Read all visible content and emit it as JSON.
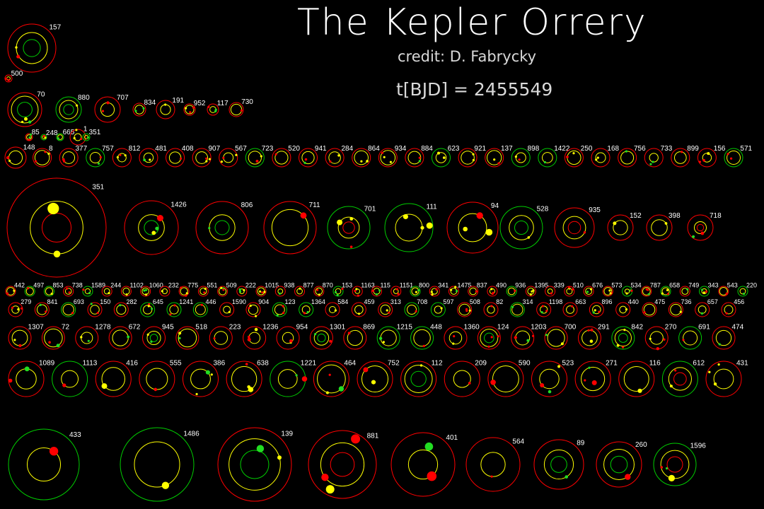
{
  "header": {
    "title": "The Kepler Orrery",
    "credit": "credit: D. Fabrycky",
    "time_label": "t[BJD] = 2455549"
  },
  "colors": {
    "background": "#000000",
    "orbit_red": "#ff0000",
    "orbit_yellow": "#ffff00",
    "orbit_green": "#00cc00",
    "planet_red": "#ff0000",
    "planet_yellow": "#ffff00",
    "planet_green": "#22dd22",
    "planet_cyan": "#22ddff",
    "label": "#ffffff"
  },
  "rows": [
    {
      "name": "row-1",
      "systems": [
        {
          "kepler_id": "157"
        }
      ]
    },
    {
      "name": "row-2",
      "systems": [
        {
          "kepler_id": "500"
        }
      ]
    },
    {
      "name": "row-3",
      "systems": [
        {
          "kepler_id": "70"
        },
        {
          "kepler_id": "880"
        },
        {
          "kepler_id": "707"
        },
        {
          "kepler_id": "834"
        },
        {
          "kepler_id": "191"
        },
        {
          "kepler_id": "952"
        },
        {
          "kepler_id": "117"
        },
        {
          "kepler_id": "730"
        }
      ]
    },
    {
      "name": "row-4",
      "systems": [
        {
          "kepler_id": "85"
        },
        {
          "kepler_id": "248"
        },
        {
          "kepler_id": "665"
        },
        {
          "kepler_id": "1"
        },
        {
          "kepler_id": "351"
        }
      ]
    },
    {
      "name": "row-5",
      "systems": [
        {
          "kepler_id": "148"
        },
        {
          "kepler_id": "8"
        },
        {
          "kepler_id": "377"
        },
        {
          "kepler_id": "757"
        },
        {
          "kepler_id": "812"
        },
        {
          "kepler_id": "481"
        },
        {
          "kepler_id": "408"
        },
        {
          "kepler_id": "907"
        },
        {
          "kepler_id": "567"
        },
        {
          "kepler_id": "723"
        },
        {
          "kepler_id": "520"
        },
        {
          "kepler_id": "941"
        },
        {
          "kepler_id": "284"
        },
        {
          "kepler_id": "864"
        },
        {
          "kepler_id": "934"
        },
        {
          "kepler_id": "884"
        },
        {
          "kepler_id": "623"
        },
        {
          "kepler_id": "921"
        },
        {
          "kepler_id": "137"
        },
        {
          "kepler_id": "898"
        },
        {
          "kepler_id": "1422"
        },
        {
          "kepler_id": "250"
        },
        {
          "kepler_id": "168"
        },
        {
          "kepler_id": "756"
        },
        {
          "kepler_id": "733"
        },
        {
          "kepler_id": "899"
        },
        {
          "kepler_id": "156"
        },
        {
          "kepler_id": "571"
        }
      ]
    },
    {
      "name": "row-6",
      "systems": [
        {
          "kepler_id": "351"
        },
        {
          "kepler_id": "1426"
        },
        {
          "kepler_id": "806"
        },
        {
          "kepler_id": "711"
        },
        {
          "kepler_id": "701"
        },
        {
          "kepler_id": "111"
        },
        {
          "kepler_id": "94"
        },
        {
          "kepler_id": "528"
        },
        {
          "kepler_id": "935"
        },
        {
          "kepler_id": "152"
        },
        {
          "kepler_id": "398"
        },
        {
          "kepler_id": "718"
        }
      ]
    },
    {
      "name": "row-7",
      "systems": [
        {
          "kepler_id": "442"
        },
        {
          "kepler_id": "497"
        },
        {
          "kepler_id": "853"
        },
        {
          "kepler_id": "738"
        },
        {
          "kepler_id": "1589"
        },
        {
          "kepler_id": "244"
        },
        {
          "kepler_id": "1102"
        },
        {
          "kepler_id": "1060"
        },
        {
          "kepler_id": "232"
        },
        {
          "kepler_id": "775"
        },
        {
          "kepler_id": "551"
        },
        {
          "kepler_id": "509"
        },
        {
          "kepler_id": "222"
        },
        {
          "kepler_id": "1015"
        },
        {
          "kepler_id": "938"
        },
        {
          "kepler_id": "877"
        },
        {
          "kepler_id": "870"
        },
        {
          "kepler_id": "153"
        },
        {
          "kepler_id": "1163"
        },
        {
          "kepler_id": "115"
        },
        {
          "kepler_id": "1151"
        },
        {
          "kepler_id": "800"
        },
        {
          "kepler_id": "341"
        },
        {
          "kepler_id": "1475"
        },
        {
          "kepler_id": "837"
        },
        {
          "kepler_id": "490"
        },
        {
          "kepler_id": "936"
        },
        {
          "kepler_id": "1395"
        },
        {
          "kepler_id": "339"
        },
        {
          "kepler_id": "510"
        },
        {
          "kepler_id": "676"
        },
        {
          "kepler_id": "573"
        },
        {
          "kepler_id": "534"
        },
        {
          "kepler_id": "787"
        },
        {
          "kepler_id": "658"
        },
        {
          "kepler_id": "749"
        },
        {
          "kepler_id": "343"
        },
        {
          "kepler_id": "543"
        },
        {
          "kepler_id": "220"
        }
      ]
    },
    {
      "name": "row-8",
      "systems": [
        {
          "kepler_id": "279"
        },
        {
          "kepler_id": "841"
        },
        {
          "kepler_id": "693"
        },
        {
          "kepler_id": "150"
        },
        {
          "kepler_id": "282"
        },
        {
          "kepler_id": "645"
        },
        {
          "kepler_id": "1241"
        },
        {
          "kepler_id": "446"
        },
        {
          "kepler_id": "1590"
        },
        {
          "kepler_id": "904"
        },
        {
          "kepler_id": "123"
        },
        {
          "kepler_id": "1364"
        },
        {
          "kepler_id": "584"
        },
        {
          "kepler_id": "459"
        },
        {
          "kepler_id": "313"
        },
        {
          "kepler_id": "708"
        },
        {
          "kepler_id": "597"
        },
        {
          "kepler_id": "508"
        },
        {
          "kepler_id": "82"
        },
        {
          "kepler_id": "314"
        },
        {
          "kepler_id": "1198"
        },
        {
          "kepler_id": "663"
        },
        {
          "kepler_id": "896"
        },
        {
          "kepler_id": "440"
        },
        {
          "kepler_id": "475"
        },
        {
          "kepler_id": "736"
        },
        {
          "kepler_id": "657"
        },
        {
          "kepler_id": "456"
        }
      ]
    },
    {
      "name": "row-9",
      "systems": [
        {
          "kepler_id": "1307"
        },
        {
          "kepler_id": "72"
        },
        {
          "kepler_id": "1278"
        },
        {
          "kepler_id": "672"
        },
        {
          "kepler_id": "945"
        },
        {
          "kepler_id": "518"
        },
        {
          "kepler_id": "223"
        },
        {
          "kepler_id": "1236"
        },
        {
          "kepler_id": "954"
        },
        {
          "kepler_id": "1301"
        },
        {
          "kepler_id": "869"
        },
        {
          "kepler_id": "1215"
        },
        {
          "kepler_id": "448"
        },
        {
          "kepler_id": "1360"
        },
        {
          "kepler_id": "124"
        },
        {
          "kepler_id": "1203"
        },
        {
          "kepler_id": "700"
        },
        {
          "kepler_id": "291"
        },
        {
          "kepler_id": "842"
        },
        {
          "kepler_id": "270"
        },
        {
          "kepler_id": "691"
        },
        {
          "kepler_id": "474"
        }
      ]
    },
    {
      "name": "row-10",
      "systems": [
        {
          "kepler_id": "1089"
        },
        {
          "kepler_id": "1113"
        },
        {
          "kepler_id": "416"
        },
        {
          "kepler_id": "555"
        },
        {
          "kepler_id": "386"
        },
        {
          "kepler_id": "638"
        },
        {
          "kepler_id": "1221"
        },
        {
          "kepler_id": "464"
        },
        {
          "kepler_id": "752"
        },
        {
          "kepler_id": "112"
        },
        {
          "kepler_id": "209"
        },
        {
          "kepler_id": "590"
        },
        {
          "kepler_id": "523"
        },
        {
          "kepler_id": "271"
        },
        {
          "kepler_id": "116"
        },
        {
          "kepler_id": "612"
        },
        {
          "kepler_id": "431"
        }
      ]
    },
    {
      "name": "row-11",
      "systems": [
        {
          "kepler_id": "433"
        },
        {
          "kepler_id": "1486"
        },
        {
          "kepler_id": "139"
        },
        {
          "kepler_id": "881"
        },
        {
          "kepler_id": "401"
        },
        {
          "kepler_id": "564"
        },
        {
          "kepler_id": "89"
        },
        {
          "kepler_id": "260"
        },
        {
          "kepler_id": "1596"
        }
      ]
    }
  ]
}
